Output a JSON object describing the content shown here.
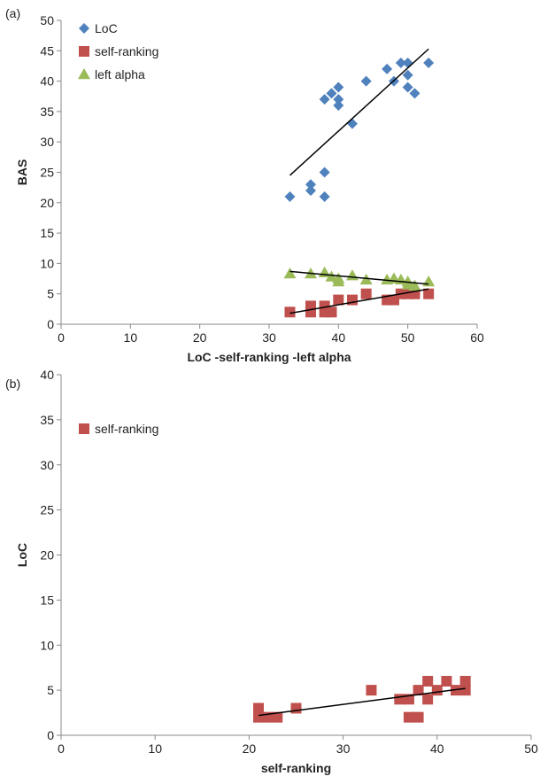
{
  "chart_data": [
    {
      "panel_label": "(a)",
      "type": "scatter",
      "xlabel": "LoC -self-ranking  -left alpha",
      "ylabel": "BAS",
      "xlim": [
        0,
        60
      ],
      "ylim": [
        0,
        50
      ],
      "x_ticks": [
        0,
        10,
        20,
        30,
        40,
        50,
        60
      ],
      "y_ticks": [
        0,
        5,
        10,
        15,
        20,
        25,
        30,
        35,
        40,
        45,
        50
      ],
      "legend_position": "top-left",
      "series": [
        {
          "name": "LoC",
          "marker": "diamond",
          "color": "#4F81BD",
          "points": [
            [
              33,
              21
            ],
            [
              36,
              23
            ],
            [
              36,
              22
            ],
            [
              38,
              25
            ],
            [
              38,
              21
            ],
            [
              38,
              37
            ],
            [
              39,
              38
            ],
            [
              40,
              39
            ],
            [
              40,
              37
            ],
            [
              40,
              36
            ],
            [
              42,
              33
            ],
            [
              44,
              40
            ],
            [
              47,
              42
            ],
            [
              48,
              40
            ],
            [
              49,
              43
            ],
            [
              50,
              43
            ],
            [
              50,
              41
            ],
            [
              50,
              39
            ],
            [
              51,
              38
            ],
            [
              53,
              43
            ]
          ],
          "trendline": [
            [
              33,
              24.5
            ],
            [
              53,
              45.3
            ]
          ]
        },
        {
          "name": "self-ranking",
          "marker": "square",
          "color": "#C0504D",
          "points": [
            [
              33,
              2
            ],
            [
              36,
              2
            ],
            [
              36,
              3
            ],
            [
              38,
              2
            ],
            [
              38,
              3
            ],
            [
              39,
              2
            ],
            [
              40,
              4
            ],
            [
              42,
              4
            ],
            [
              44,
              5
            ],
            [
              47,
              4
            ],
            [
              48,
              4
            ],
            [
              49,
              5
            ],
            [
              50,
              5
            ],
            [
              51,
              5
            ],
            [
              53,
              5
            ]
          ],
          "trendline": [
            [
              33,
              1.8
            ],
            [
              53,
              5.8
            ]
          ]
        },
        {
          "name": "left alpha",
          "marker": "triangle",
          "color": "#9BBB59",
          "points": [
            [
              33,
              8.3
            ],
            [
              36,
              8.3
            ],
            [
              38,
              8.5
            ],
            [
              39,
              7.8
            ],
            [
              40,
              7.5
            ],
            [
              40,
              7.0
            ],
            [
              42,
              8.0
            ],
            [
              44,
              7.3
            ],
            [
              47,
              7.3
            ],
            [
              48,
              7.5
            ],
            [
              49,
              7.3
            ],
            [
              50,
              7.0
            ],
            [
              50,
              6.5
            ],
            [
              51,
              6.3
            ],
            [
              53,
              7.0
            ]
          ],
          "trendline": [
            [
              33,
              8.7
            ],
            [
              53,
              6.6
            ]
          ]
        }
      ]
    },
    {
      "panel_label": "(b)",
      "type": "scatter",
      "xlabel": "self-ranking",
      "ylabel": "LoC",
      "xlim": [
        0,
        50
      ],
      "ylim": [
        0,
        40
      ],
      "x_ticks": [
        0,
        10,
        20,
        30,
        40,
        50
      ],
      "y_ticks": [
        0,
        5,
        10,
        15,
        20,
        25,
        30,
        35,
        40
      ],
      "legend_position": "top-left",
      "series": [
        {
          "name": "self-ranking",
          "marker": "square",
          "color": "#C0504D",
          "points": [
            [
              21,
              3
            ],
            [
              21,
              2
            ],
            [
              22,
              2
            ],
            [
              23,
              2
            ],
            [
              25,
              3
            ],
            [
              33,
              5
            ],
            [
              36,
              4
            ],
            [
              37,
              4
            ],
            [
              37,
              2
            ],
            [
              38,
              2
            ],
            [
              38,
              5
            ],
            [
              39,
              6
            ],
            [
              39,
              4
            ],
            [
              40,
              5
            ],
            [
              41,
              6
            ],
            [
              42,
              5
            ],
            [
              43,
              6
            ],
            [
              43,
              5
            ]
          ],
          "trendline": [
            [
              21,
              2.2
            ],
            [
              43,
              5.2
            ]
          ]
        }
      ]
    }
  ]
}
